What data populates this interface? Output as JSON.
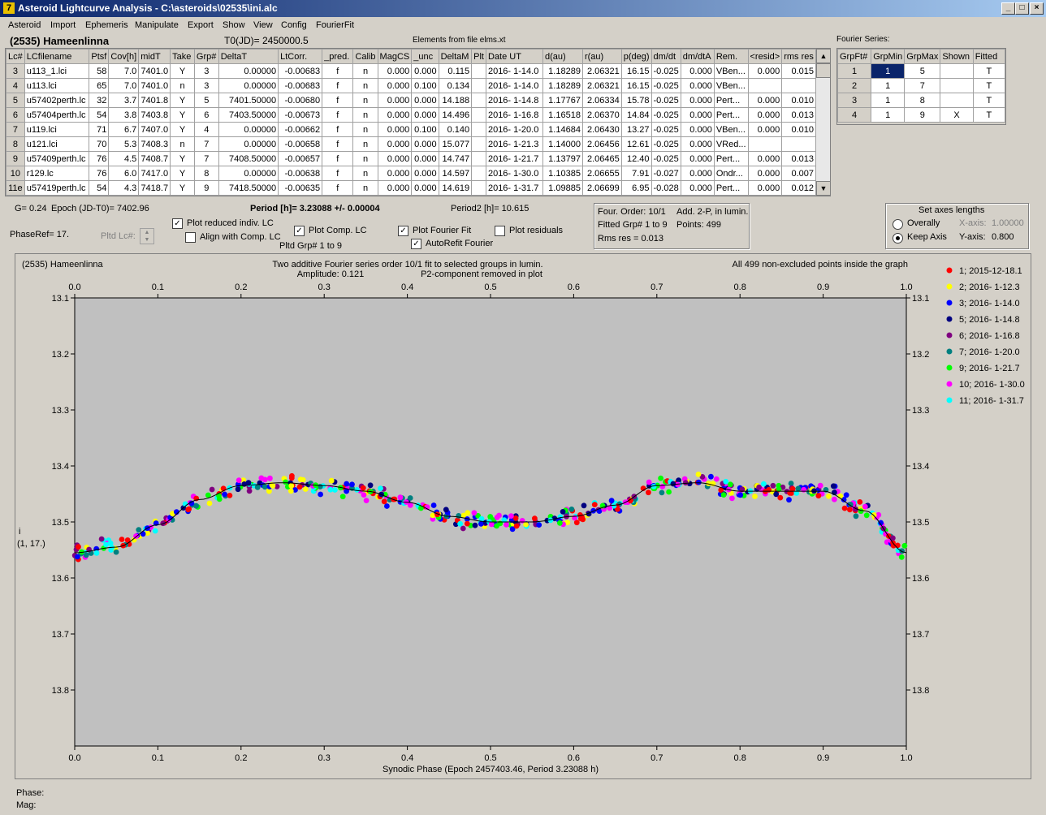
{
  "window": {
    "title": "Asteroid Lightcurve Analysis - C:\\asteroids\\02535\\ini.alc",
    "app_icon": "7"
  },
  "menu": [
    "Asteroid",
    "Import",
    "Ephemeris",
    "Manipulate",
    "Export",
    "Show",
    "View",
    "Config",
    "FourierFit"
  ],
  "header": {
    "asteroid": "(2535) Hameenlinna",
    "t0": "T0(JD)= 2450000.5",
    "elements": "Elements from file elms.xt",
    "fourier_label": "Fourier Series:"
  },
  "lc_table": {
    "columns": [
      "Lc#",
      "LCfilename",
      "Ptsf",
      "Cov[h]",
      "midT",
      "Take",
      "Grp#",
      "DeltaT",
      "LtCorr.",
      "_pred.",
      "Calib",
      "MagCS",
      "_unc",
      "DeltaM",
      "Plt",
      "Date UT",
      "d(au)",
      "r(au)",
      "p(deg)",
      "dm/dt",
      "dm/dtA",
      "Rem.",
      "<resid>",
      "rms res"
    ],
    "rows": [
      [
        "3",
        "u113_1.lci",
        "58",
        "7.0",
        "7401.0",
        "Y",
        "3",
        "0.00000",
        "-0.00683",
        "f",
        "n",
        "0.000",
        "0.000",
        "0.115",
        "",
        "2016- 1-14.0",
        "1.18289",
        "2.06321",
        "16.15",
        "-0.025",
        "0.000",
        "VBen...",
        "0.000",
        "0.015"
      ],
      [
        "4",
        "u113.lci",
        "65",
        "7.0",
        "7401.0",
        "n",
        "3",
        "0.00000",
        "-0.00683",
        "f",
        "n",
        "0.000",
        "0.100",
        "0.134",
        "",
        "2016- 1-14.0",
        "1.18289",
        "2.06321",
        "16.15",
        "-0.025",
        "0.000",
        "VBen...",
        "",
        ""
      ],
      [
        "5",
        "u57402perth.lc",
        "32",
        "3.7",
        "7401.8",
        "Y",
        "5",
        "7401.50000",
        "-0.00680",
        "f",
        "n",
        "0.000",
        "0.000",
        "14.188",
        "",
        "2016- 1-14.8",
        "1.17767",
        "2.06334",
        "15.78",
        "-0.025",
        "0.000",
        "Pert...",
        "0.000",
        "0.010"
      ],
      [
        "6",
        "u57404perth.lc",
        "54",
        "3.8",
        "7403.8",
        "Y",
        "6",
        "7403.50000",
        "-0.00673",
        "f",
        "n",
        "0.000",
        "0.000",
        "14.496",
        "",
        "2016- 1-16.8",
        "1.16518",
        "2.06370",
        "14.84",
        "-0.025",
        "0.000",
        "Pert...",
        "0.000",
        "0.013"
      ],
      [
        "7",
        "u119.lci",
        "71",
        "6.7",
        "7407.0",
        "Y",
        "4",
        "0.00000",
        "-0.00662",
        "f",
        "n",
        "0.000",
        "0.100",
        "0.140",
        "",
        "2016- 1-20.0",
        "1.14684",
        "2.06430",
        "13.27",
        "-0.025",
        "0.000",
        "VBen...",
        "0.000",
        "0.010"
      ],
      [
        "8",
        "u121.lci",
        "70",
        "5.3",
        "7408.3",
        "n",
        "7",
        "0.00000",
        "-0.00658",
        "f",
        "n",
        "0.000",
        "0.000",
        "15.077",
        "",
        "2016- 1-21.3",
        "1.14000",
        "2.06456",
        "12.61",
        "-0.025",
        "0.000",
        "VRed...",
        "",
        ""
      ],
      [
        "9",
        "u57409perth.lc",
        "76",
        "4.5",
        "7408.7",
        "Y",
        "7",
        "7408.50000",
        "-0.00657",
        "f",
        "n",
        "0.000",
        "0.000",
        "14.747",
        "",
        "2016- 1-21.7",
        "1.13797",
        "2.06465",
        "12.40",
        "-0.025",
        "0.000",
        "Pert...",
        "0.000",
        "0.013"
      ],
      [
        "10",
        "r129.lc",
        "76",
        "6.0",
        "7417.0",
        "Y",
        "8",
        "0.00000",
        "-0.00638",
        "f",
        "n",
        "0.000",
        "0.000",
        "14.597",
        "",
        "2016- 1-30.0",
        "1.10385",
        "2.06655",
        "7.91",
        "-0.027",
        "0.000",
        "Ondr...",
        "0.000",
        "0.007"
      ],
      [
        "11e",
        "u57419perth.lc",
        "54",
        "4.3",
        "7418.7",
        "Y",
        "9",
        "7418.50000",
        "-0.00635",
        "f",
        "n",
        "0.000",
        "0.000",
        "14.619",
        "",
        "2016- 1-31.7",
        "1.09885",
        "2.06699",
        "6.95",
        "-0.028",
        "0.000",
        "Pert...",
        "0.000",
        "0.012"
      ]
    ]
  },
  "fourier_table": {
    "columns": [
      "GrpFt#",
      "GrpMin",
      "GrpMax",
      "Shown",
      "Fitted"
    ],
    "rows": [
      [
        "1",
        "1",
        "5",
        "",
        "T"
      ],
      [
        "2",
        "1",
        "7",
        "",
        "T"
      ],
      [
        "3",
        "1",
        "8",
        "",
        "T"
      ],
      [
        "4",
        "1",
        "9",
        "X",
        "T"
      ]
    ]
  },
  "controls": {
    "g": "G= 0.24",
    "epoch": "Epoch (JD-T0)= 7402.96",
    "period": "Period [h]= 3.23088 +/- 0.00004",
    "period2": "Period2 [h]= 10.615",
    "phaseref": "PhaseRef= 17.",
    "pltd_lc": "Pltd Lc#:",
    "pltd_grp": "Pltd Grp#  1  to  9",
    "cb_reduced": "Plot reduced indiv. LC",
    "cb_align": "Align with Comp. LC",
    "cb_comp": "Plot Comp. LC",
    "cb_fourier": "Plot Fourier Fit",
    "cb_autorefit": "AutoRefit Fourier",
    "cb_residuals": "Plot residuals",
    "info_order": "Four. Order: 10/1",
    "info_add": "Add. 2-P, in lumin.",
    "info_fitted": "Fitted Grp# 1 to 9",
    "info_points": "Points: 499",
    "info_rms": "Rms res      = 0.013",
    "axes_title": "Set axes lengths",
    "overally": "Overally",
    "keep_axis": "Keep Axis",
    "xaxis_label": "X-axis:",
    "xaxis_val": "1.00000",
    "yaxis_label": "Y-axis:",
    "yaxis_val": "0.800"
  },
  "status": {
    "phase": "Phase:",
    "mag": "Mag:"
  },
  "chart_data": {
    "type": "scatter",
    "title_left": "(2535) Hameenlinna",
    "title_center": "Two additive Fourier series order 10/1 fit to selected groups in lumin.",
    "title_right": "All 499 non-excluded points inside the graph",
    "subtitle_amp": "Amplitude: 0.121",
    "subtitle_p2": "P2-component removed in plot",
    "xlabel": "Synodic Phase (Epoch 2457403.46, Period 3.23088 h)",
    "ylabel": "i",
    "ylabel2": "(1, 17.)",
    "xlim": [
      0,
      1
    ],
    "ylim": [
      13.1,
      13.9
    ],
    "y_inverted": true,
    "xticks": [
      "0.0",
      "0.1",
      "0.2",
      "0.3",
      "0.4",
      "0.5",
      "0.6",
      "0.7",
      "0.8",
      "0.9",
      "1.0"
    ],
    "yticks": [
      "13.1",
      "13.2",
      "13.3",
      "13.4",
      "13.5",
      "13.6",
      "13.7",
      "13.8"
    ],
    "fit_curve": [
      [
        0.0,
        13.555
      ],
      [
        0.05,
        13.545
      ],
      [
        0.1,
        13.505
      ],
      [
        0.15,
        13.46
      ],
      [
        0.2,
        13.435
      ],
      [
        0.25,
        13.43
      ],
      [
        0.3,
        13.435
      ],
      [
        0.35,
        13.445
      ],
      [
        0.4,
        13.465
      ],
      [
        0.45,
        13.49
      ],
      [
        0.5,
        13.5
      ],
      [
        0.55,
        13.5
      ],
      [
        0.6,
        13.49
      ],
      [
        0.65,
        13.47
      ],
      [
        0.7,
        13.435
      ],
      [
        0.75,
        13.43
      ],
      [
        0.8,
        13.445
      ],
      [
        0.85,
        13.445
      ],
      [
        0.9,
        13.445
      ],
      [
        0.95,
        13.48
      ],
      [
        1.0,
        13.555
      ]
    ],
    "series": [
      {
        "name": "1; 2015-12-18.1",
        "color": "#ff0000"
      },
      {
        "name": "2; 2016- 1-12.3",
        "color": "#ffff00"
      },
      {
        "name": "3; 2016- 1-14.0",
        "color": "#0000ff"
      },
      {
        "name": "5; 2016- 1-14.8",
        "color": "#000080"
      },
      {
        "name": "6; 2016- 1-16.8",
        "color": "#800080"
      },
      {
        "name": "7; 2016- 1-20.0",
        "color": "#008080"
      },
      {
        "name": "9; 2016- 1-21.7",
        "color": "#00ff00"
      },
      {
        "name": "10; 2016- 1-30.0",
        "color": "#ff00ff"
      },
      {
        "name": "11; 2016- 1-31.7",
        "color": "#00ffff"
      }
    ],
    "points_shown": 499,
    "scatter_spread": 0.012
  }
}
